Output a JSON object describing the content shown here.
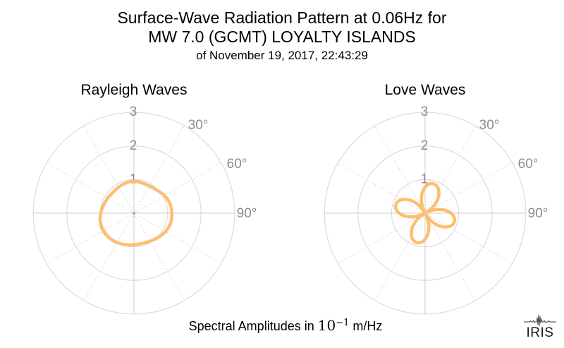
{
  "header": {
    "title_line1": "Surface-Wave Radiation Pattern at 0.06Hz for",
    "title_line2": "MW 7.0 (GCMT) LOYALTY ISLANDS",
    "title_line3": "of November 19, 2017, 22:43:29"
  },
  "footer": {
    "caption_prefix": "Spectral Amplitudes in ",
    "caption_math_base": "10",
    "caption_math_exp": "−1",
    "caption_suffix": " m/Hz"
  },
  "logo": {
    "text": "IRIS"
  },
  "colors": {
    "curve": "#FDBF6F",
    "grid_circle": "#dbdbdb",
    "grid_axis": "#d6d6d6",
    "grid_dotted": "#c9c9c9",
    "tick_text": "#8d8d8d"
  },
  "chart_data": [
    {
      "type": "line",
      "projection": "polar",
      "title": "Rayleigh Waves",
      "r_ticks": [
        1,
        2,
        3
      ],
      "r_max": 3,
      "theta_zero_location": "top",
      "theta_direction": "clockwise",
      "theta_tick_labels": [
        {
          "angle_deg": 30,
          "label": "30°"
        },
        {
          "angle_deg": 60,
          "label": "60°"
        },
        {
          "angle_deg": 90,
          "label": "90°"
        }
      ],
      "amplitude_units": "10⁻¹ m/Hz",
      "pattern": {
        "render": "spline",
        "description": "smooth two-lobed blob, maxima ~1.1 near azimuths 95° and 245°, minimum ~0.88 near 315°",
        "samples_azimuth_deg": [
          0,
          15,
          30,
          45,
          60,
          75,
          90,
          105,
          120,
          135,
          150,
          165,
          180,
          195,
          210,
          225,
          240,
          255,
          270,
          285,
          300,
          315,
          330,
          345
        ],
        "samples_r": [
          0.95,
          0.93,
          0.93,
          0.97,
          1.05,
          1.11,
          1.13,
          1.13,
          1.09,
          1.02,
          0.96,
          0.93,
          0.94,
          0.97,
          1.01,
          1.04,
          1.06,
          1.04,
          0.99,
          0.94,
          0.9,
          0.88,
          0.9,
          0.93
        ]
      }
    },
    {
      "type": "line",
      "projection": "polar",
      "title": "Love Waves",
      "r_ticks": [
        1,
        2,
        3
      ],
      "r_max": 3,
      "theta_zero_location": "top",
      "theta_direction": "clockwise",
      "theta_tick_labels": [
        {
          "angle_deg": 30,
          "label": "30°"
        },
        {
          "angle_deg": 60,
          "label": "60°"
        },
        {
          "angle_deg": 90,
          "label": "90°"
        }
      ],
      "amplitude_units": "10⁻¹ m/Hz",
      "pattern": {
        "render": "formula",
        "form": "r = amp * |cos(2*(azimuth - phase_deg))|",
        "description": "four-petal rose, petal tips ~0.9 at azimuths 16°, 106°, 196°, 286°",
        "base": 0,
        "amp": 0.91,
        "phase_deg": 16,
        "abs": true,
        "samples_azimuth_deg": [
          0,
          15,
          30,
          45,
          60,
          75,
          90,
          105,
          120,
          135,
          150,
          165,
          180,
          195,
          210,
          225,
          240,
          255,
          270,
          285,
          300,
          315,
          330,
          345
        ],
        "samples_r": [
          0.77,
          0.91,
          0.8,
          0.48,
          0.03,
          0.43,
          0.77,
          0.91,
          0.8,
          0.48,
          0.03,
          0.43,
          0.77,
          0.91,
          0.8,
          0.48,
          0.03,
          0.43,
          0.77,
          0.91,
          0.8,
          0.48,
          0.03,
          0.43
        ]
      }
    }
  ]
}
